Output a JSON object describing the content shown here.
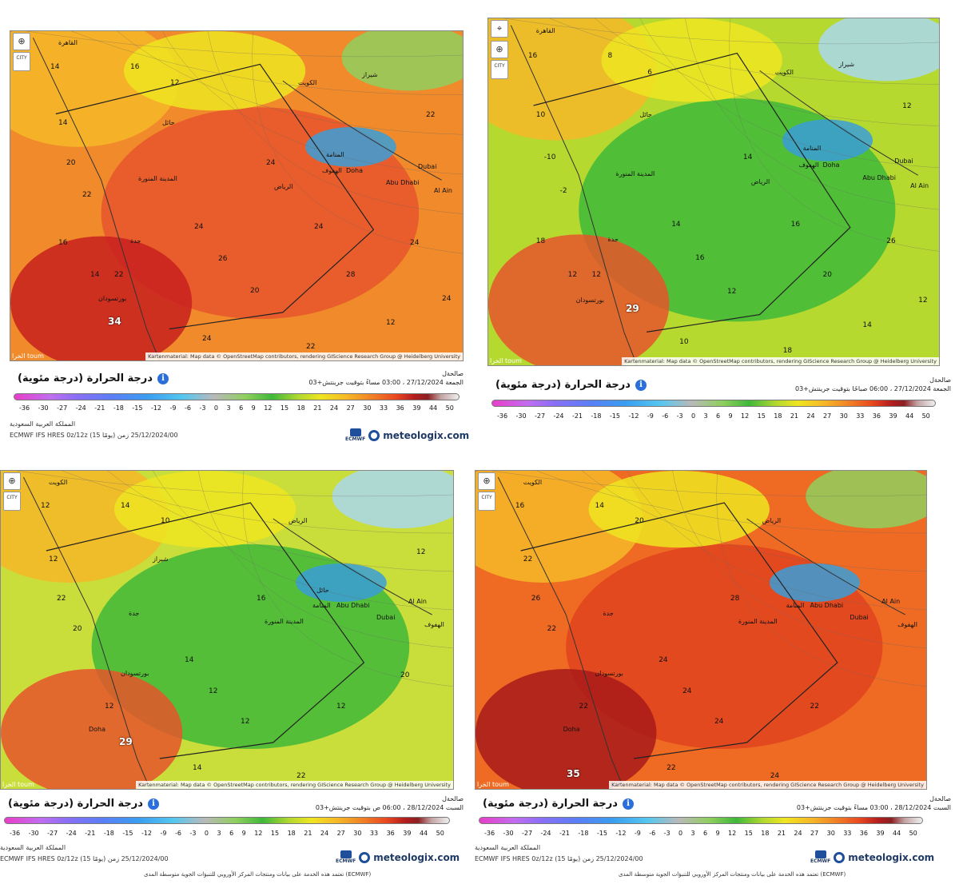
{
  "panels": [
    {
      "id": "p1",
      "title": "درجة الحرارة (درجة مئوية)",
      "meta_line1": "صالحةل",
      "meta_line2": "الجمعة 27/12/2024 ، 03:00 مساءً بتوقيت جرينتش+03",
      "region": "المملكة العربية السعودية",
      "model": "ECMWF IFS HRES 0z/12z (15 يومًا) 25/12/2024/00 زمن",
      "attribution": "Kartenmaterial: Map data © OpenStreetMap contributors, rendering GIScience Research Group @ Heidelberg University",
      "brand": "الخرا toum",
      "big_value": "34",
      "cities": [
        "القاهرة",
        "الكويت",
        "الرياض",
        "المدينة المنورة",
        "جدة",
        "بورتسودان",
        "Doha",
        "Abu Dhabi",
        "Dubai",
        "Al Ain",
        "الهفوف",
        "المنامة",
        "حائل",
        "شيراز"
      ],
      "values": [
        "14",
        "16",
        "12",
        "14",
        "20",
        "22",
        "24",
        "22",
        "26",
        "24",
        "20",
        "24",
        "22",
        "28",
        "24",
        "22",
        "16",
        "14",
        "12",
        "24",
        "24"
      ],
      "footnote": ""
    },
    {
      "id": "p2",
      "title": "درجة الحرارة (درجة مئوية)",
      "meta_line1": "صالحةل",
      "meta_line2": "الجمعة 27/12/2024 ، 06:00 صباحًا بتوقيت جرينتش+03",
      "region": "",
      "model": "",
      "attribution": "Kartenmaterial: Map data © OpenStreetMap contributors, rendering GIScience Research Group @ Heidelberg University",
      "brand": "الخرا toum",
      "big_value": "29",
      "cities": [
        "القاهرة",
        "الكويت",
        "الرياض",
        "المدينة المنورة",
        "جدة",
        "بورتسودان",
        "Doha",
        "Abu Dhabi",
        "Dubai",
        "Al Ain",
        "الهفوف",
        "المنامة",
        "حائل",
        "شيراز"
      ],
      "values": [
        "16",
        "8",
        "6",
        "10",
        "-10",
        "-2",
        "14",
        "12",
        "16",
        "14",
        "12",
        "10",
        "18",
        "20",
        "26",
        "12",
        "18",
        "12",
        "14",
        "16",
        "12"
      ],
      "footnote": ""
    },
    {
      "id": "p3",
      "title": "درجة الحرارة (درجة مئوية)",
      "meta_line1": "صالحةل",
      "meta_line2": "السبت 28/12/2024 ، 06:00 ص بتوقيت جرينتش+03",
      "region": "المملكة العربية السعودية",
      "model": "ECMWF IFS HRES 0z/12z (15 يومًا) 25/12/2024/00 زمن",
      "attribution": "Kartenmaterial: Map data © OpenStreetMap contributors, rendering GIScience Research Group @ Heidelberg University",
      "brand": "الخرا toum",
      "big_value": "29",
      "cities": [
        "الكويت",
        "الرياض",
        "المدينة المنورة",
        "جدة",
        "بورتسودان",
        "Doha",
        "Abu Dhabi",
        "Dubai",
        "Al Ain",
        "الهفوف",
        "المنامة",
        "حائل",
        "شيراز"
      ],
      "values": [
        "12",
        "14",
        "10",
        "12",
        "22",
        "20",
        "14",
        "12",
        "12",
        "16",
        "12",
        "14",
        "22",
        "12",
        "20",
        "12"
      ],
      "footnote": "(ECMWF) تعتمد هذه الخدمة على بيانات ومنتجات المركز الأوروبي للتنبؤات الجوية متوسطة المدى"
    },
    {
      "id": "p4",
      "title": "درجة الحرارة (درجة مئوية)",
      "meta_line1": "صالحةل",
      "meta_line2": "السبت 28/12/2024 ، 03:00 مساءً بتوقيت جرينتش+03",
      "region": "المملكة العربية السعودية",
      "model": "ECMWF IFS HRES 0z/12z (15 يومًا) 25/12/2024/00 زمن",
      "attribution": "Kartenmaterial: Map data © OpenStreetMap contributors, rendering GIScience Research Group @ Heidelberg University",
      "brand": "الخرا toum",
      "big_value": "35",
      "cities": [
        "الكويت",
        "الرياض",
        "المدينة المنورة",
        "جدة",
        "بورتسودان",
        "Doha",
        "Abu Dhabi",
        "Dubai",
        "Al Ain",
        "الهفوف",
        "المنامة"
      ],
      "values": [
        "16",
        "14",
        "20",
        "22",
        "26",
        "22",
        "24",
        "22",
        "24",
        "28",
        "24",
        "22",
        "24",
        "22"
      ],
      "footnote": "(ECMWF) تعتمد هذه الخدمة على بيانات ومنتجات المركز الأوروبي للتنبؤات الجوية متوسطة المدى"
    }
  ],
  "scale": {
    "ticks": [
      "-36",
      "-30",
      "-27",
      "-24",
      "-21",
      "-18",
      "-15",
      "-12",
      "-9",
      "-6",
      "-3",
      "0",
      "3",
      "6",
      "9",
      "12",
      "15",
      "18",
      "21",
      "24",
      "27",
      "30",
      "33",
      "36",
      "39",
      "44",
      "50"
    ]
  },
  "logo_text": "meteologix.com",
  "ecmwf_label": "ECMWF",
  "controls": {
    "zoom": "⊕",
    "city": "CITY",
    "pin": "⌖"
  },
  "icons": [
    "zoom-icon",
    "city-toggle-icon",
    "location-pin-icon",
    "info-icon",
    "meteologix-logo-icon",
    "ecmwf-logo-icon"
  ],
  "colors": {
    "hot": "#c8201e",
    "warm": "#f07c26",
    "mild": "#efe521",
    "cool": "#3fb83a",
    "cold": "#a9d8ee",
    "info": "#2a6fdb",
    "brand": "#1f3a66"
  }
}
